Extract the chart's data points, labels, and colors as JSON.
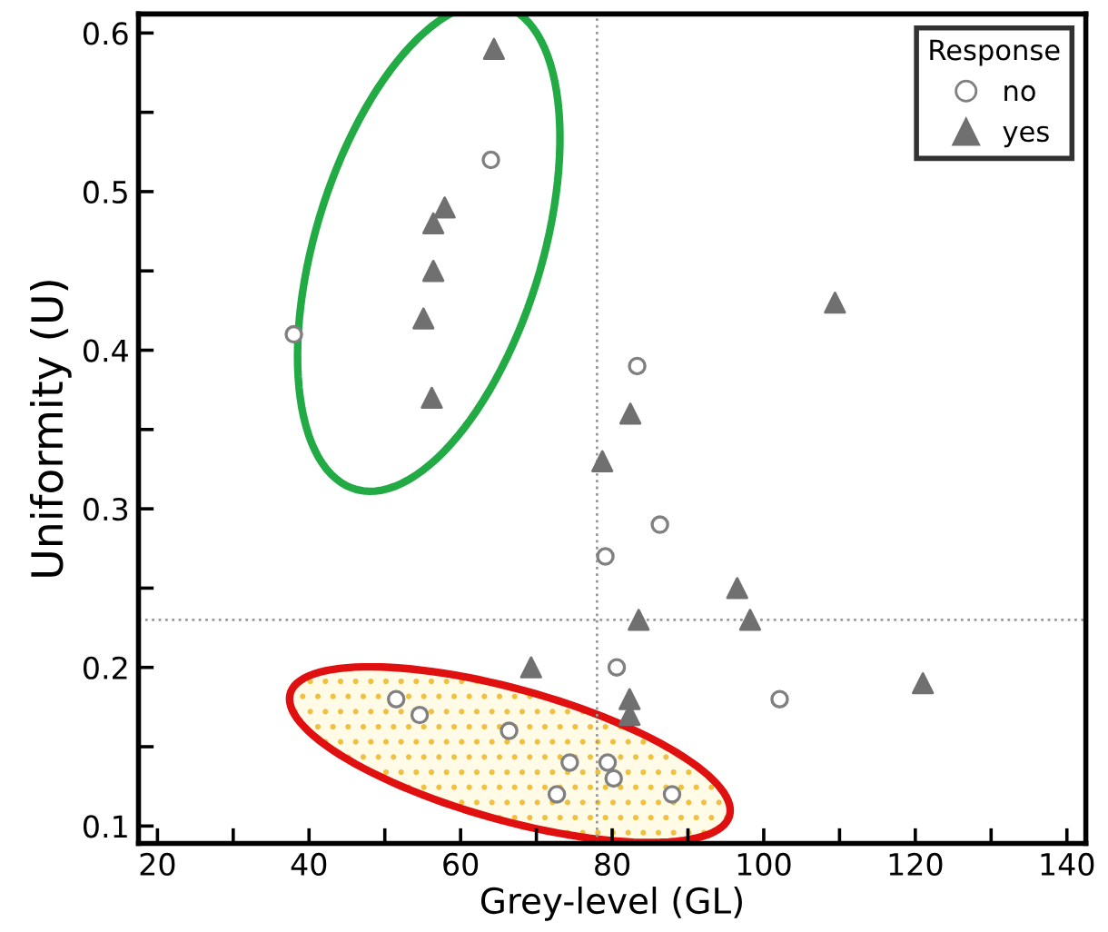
{
  "chart_data": {
    "type": "scatter",
    "xlabel": "Grey-level (GL)",
    "ylabel": "Uniformity (U)",
    "legend_title": "Response",
    "legend": "top right",
    "grid": false,
    "xlim": [
      17.5,
      142.5
    ],
    "ylim": [
      0.089,
      0.612
    ],
    "xticks": [
      20,
      {
        "value": 30,
        "label": null
      },
      40,
      {
        "value": 50,
        "label": null
      },
      60,
      {
        "value": 70,
        "label": null
      },
      80,
      {
        "value": 90,
        "label": null
      },
      100,
      {
        "value": 110,
        "label": null
      },
      120,
      {
        "value": 130,
        "label": null
      },
      140
    ],
    "yticks": [
      0.1,
      {
        "value": 0.15,
        "label": null
      },
      0.2,
      {
        "value": 0.25,
        "label": null
      },
      0.3,
      {
        "value": 0.35,
        "label": null
      },
      0.4,
      {
        "value": 0.45,
        "label": null
      },
      0.5,
      {
        "value": 0.55,
        "label": null
      },
      0.6
    ],
    "series": [
      {
        "name": "no",
        "color": "#808080",
        "marker": "circle",
        "x": [
          38,
          64,
          83.3,
          86.3,
          79.1,
          80.6,
          102.1,
          51.5,
          54.6,
          66.4,
          74.4,
          79.4,
          80.2,
          72.7,
          87.9
        ],
        "values": [
          0.41,
          0.52,
          0.39,
          0.29,
          0.27,
          0.2,
          0.18,
          0.18,
          0.17,
          0.16,
          0.14,
          0.14,
          0.13,
          0.12,
          0.12
        ]
      },
      {
        "name": "yes",
        "color": "#707070",
        "marker": "triangle",
        "x": [
          64.4,
          57.9,
          56.4,
          56.4,
          55.1,
          56.2,
          109.4,
          82.4,
          78.7,
          96.5,
          83.5,
          98.2,
          69.3,
          121.0,
          82.3,
          82.3
        ],
        "values": [
          0.59,
          0.49,
          0.48,
          0.45,
          0.42,
          0.37,
          0.43,
          0.36,
          0.33,
          0.25,
          0.23,
          0.23,
          0.2,
          0.19,
          0.18,
          0.17
        ]
      }
    ],
    "ref_lines": [
      {
        "axis": "x",
        "value": 78,
        "color": "#999999",
        "line_style": "dotted"
      },
      {
        "axis": "y",
        "value": 0.23,
        "color": "#999999",
        "line_style": "dotted"
      }
    ]
  }
}
